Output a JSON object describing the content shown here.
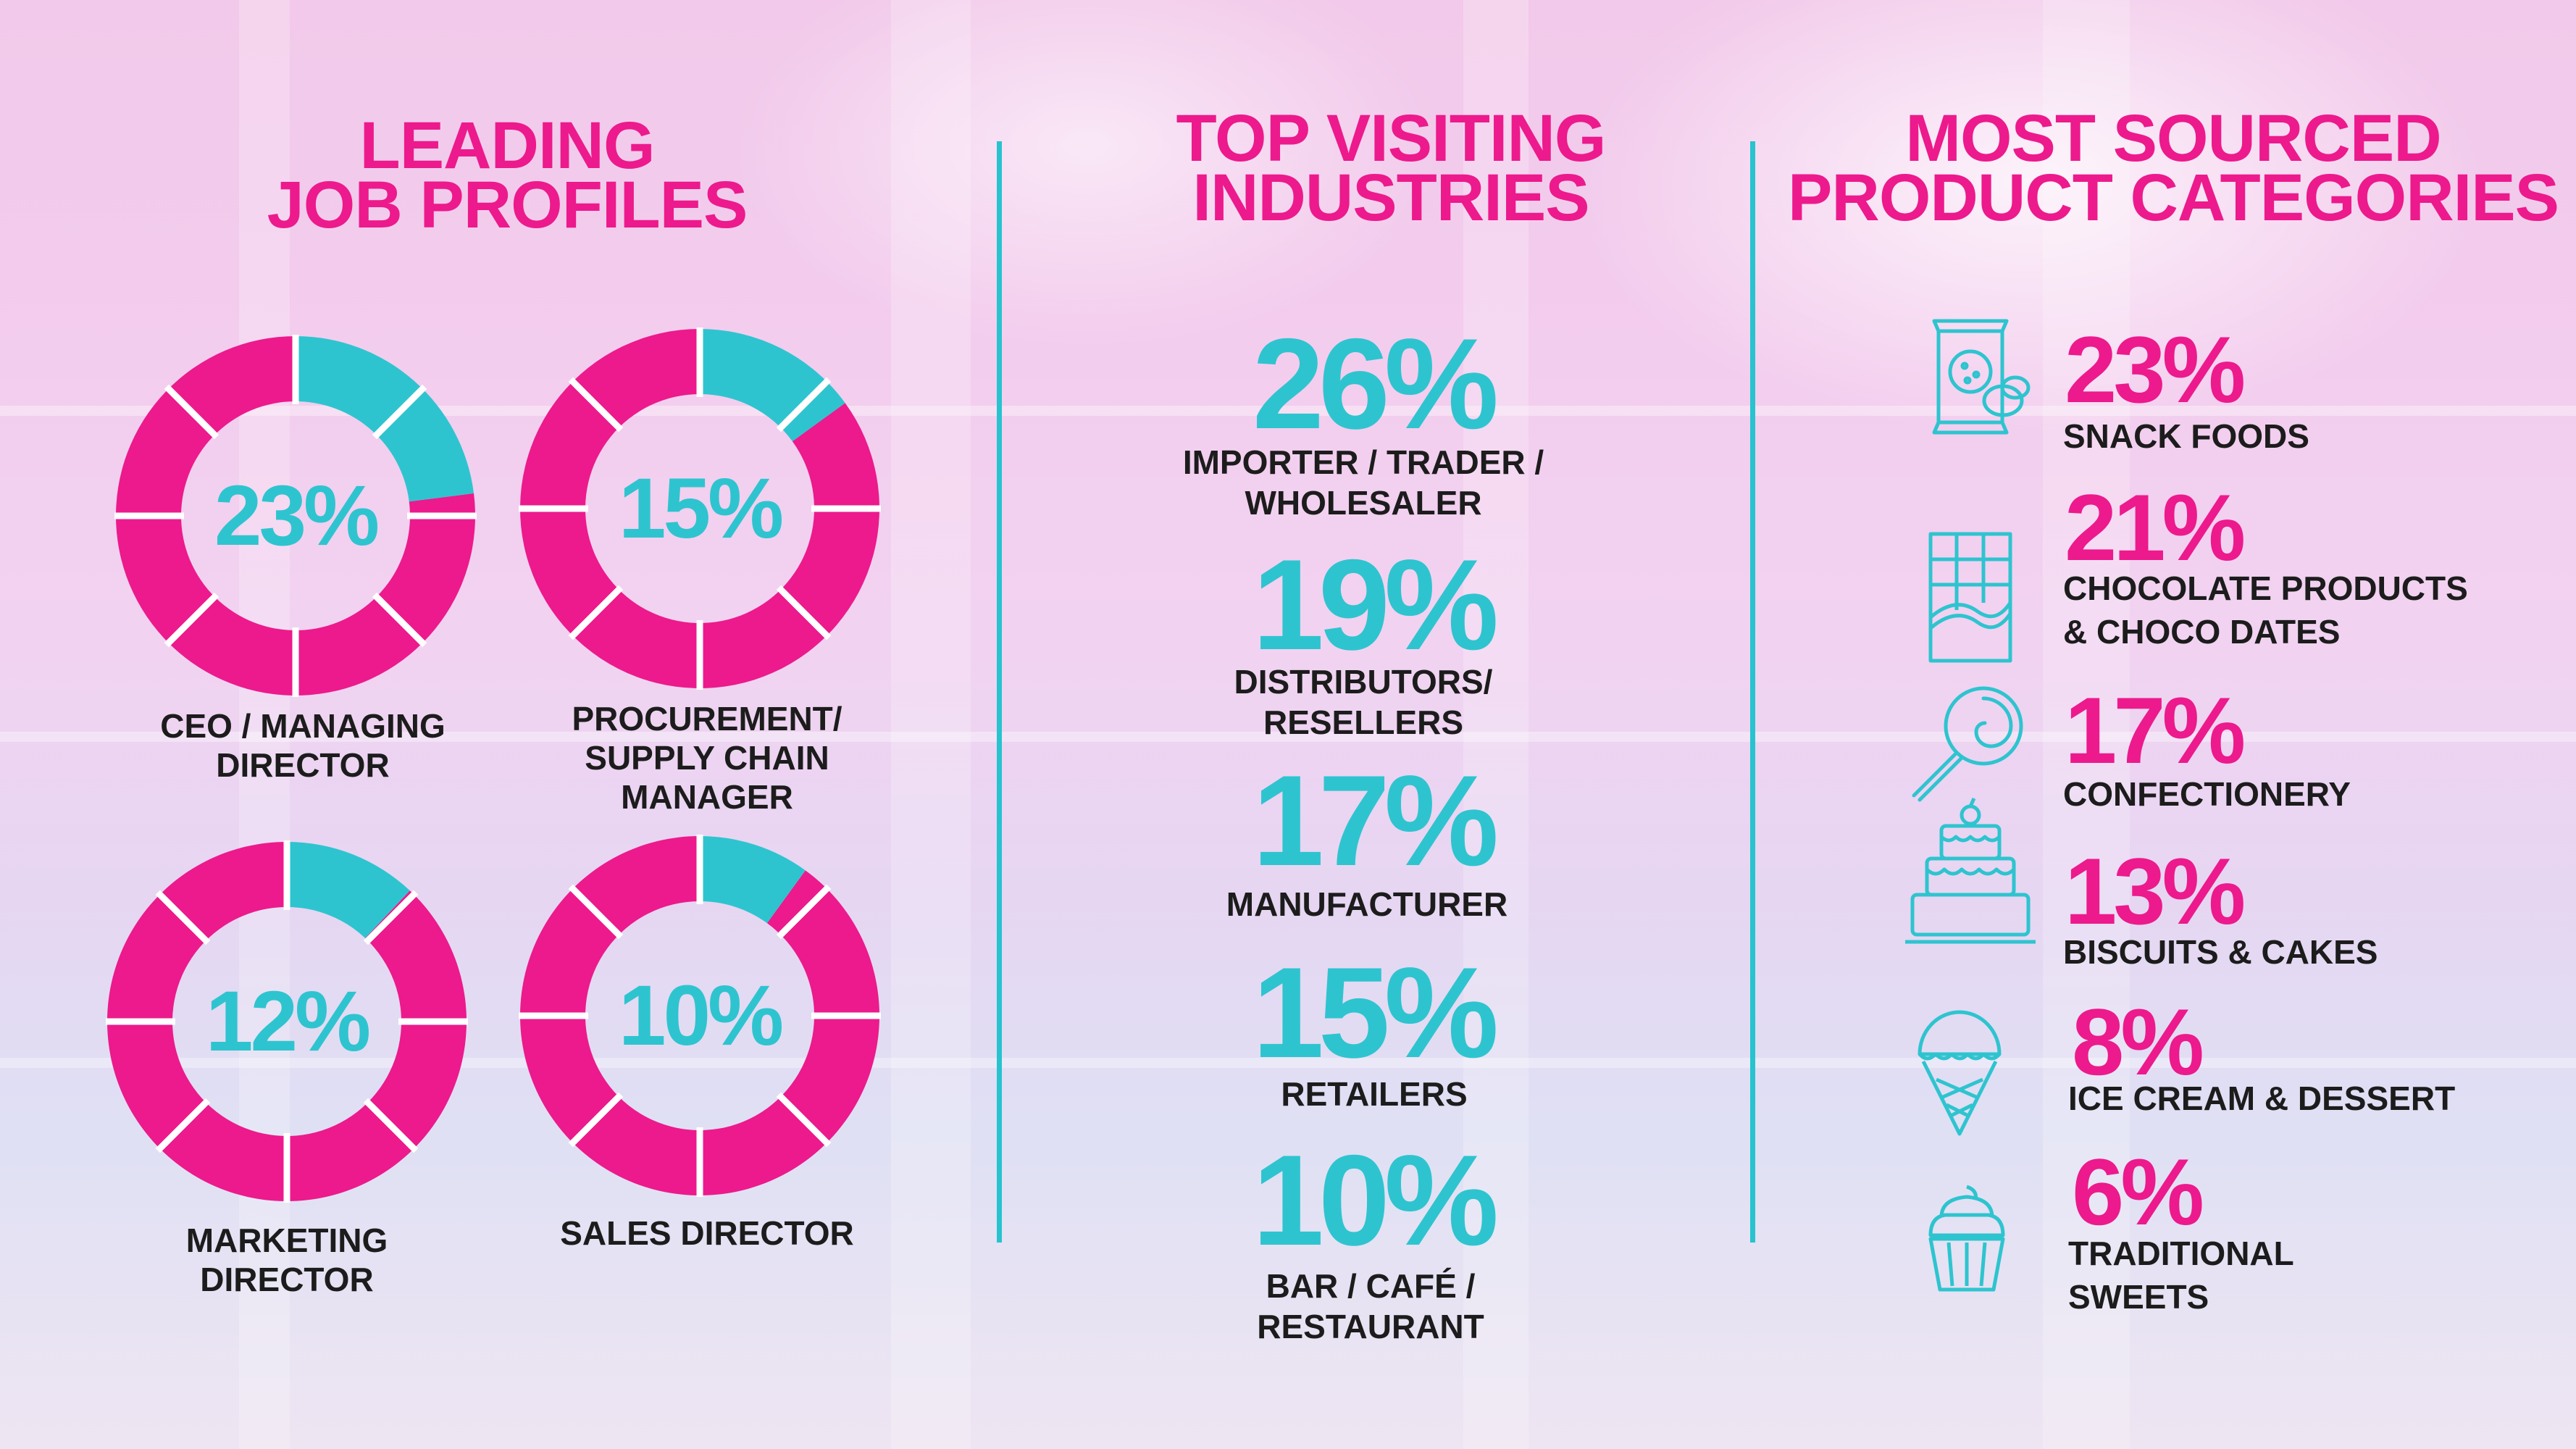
{
  "colors": {
    "pink": "#ec1a8c",
    "teal": "#2ec4cf",
    "text": "#1c1c1c"
  },
  "sections": {
    "job_profiles": {
      "title_lines": [
        "LEADING",
        "JOB PROFILES"
      ],
      "items": [
        {
          "percent": "23%",
          "value": 23,
          "label_lines": [
            "CEO / MANAGING",
            "DIRECTOR"
          ]
        },
        {
          "percent": "15%",
          "value": 15,
          "label_lines": [
            "PROCUREMENT/",
            "SUPPLY CHAIN",
            "MANAGER"
          ]
        },
        {
          "percent": "12%",
          "value": 12,
          "label_lines": [
            "MARKETING",
            "DIRECTOR"
          ]
        },
        {
          "percent": "10%",
          "value": 10,
          "label_lines": [
            "SALES DIRECTOR"
          ]
        }
      ]
    },
    "industries": {
      "title_lines": [
        "TOP VISITING",
        "INDUSTRIES"
      ],
      "items": [
        {
          "percent": "26%",
          "label_lines": [
            "IMPORTER / TRADER /",
            "WHOLESALER"
          ]
        },
        {
          "percent": "19%",
          "label_lines": [
            "DISTRIBUTORS/",
            "RESELLERS"
          ]
        },
        {
          "percent": "17%",
          "label_lines": [
            "MANUFACTURER"
          ]
        },
        {
          "percent": "15%",
          "label_lines": [
            "RETAILERS"
          ]
        },
        {
          "percent": "10%",
          "label_lines": [
            "BAR / CAFÉ /",
            "RESTAURANT"
          ]
        }
      ]
    },
    "categories": {
      "title_lines": [
        "MOST SOURCED",
        "PRODUCT CATEGORIES"
      ],
      "items": [
        {
          "percent": "23%",
          "icon": "snack-bag-icon",
          "label_lines": [
            "SNACK FOODS"
          ]
        },
        {
          "percent": "21%",
          "icon": "chocolate-bar-icon",
          "label_lines": [
            "CHOCOLATE PRODUCTS",
            "& CHOCO DATES"
          ]
        },
        {
          "percent": "17%",
          "icon": "lollipop-icon",
          "label_lines": [
            "CONFECTIONERY"
          ]
        },
        {
          "percent": "13%",
          "icon": "cake-icon",
          "label_lines": [
            "BISCUITS & CAKES"
          ]
        },
        {
          "percent": "8%",
          "icon": "ice-cream-cone-icon",
          "label_lines": [
            "ICE CREAM & DESSERT"
          ]
        },
        {
          "percent": "6%",
          "icon": "cupcake-icon",
          "label_lines": [
            "TRADITIONAL",
            "SWEETS"
          ]
        }
      ]
    }
  }
}
